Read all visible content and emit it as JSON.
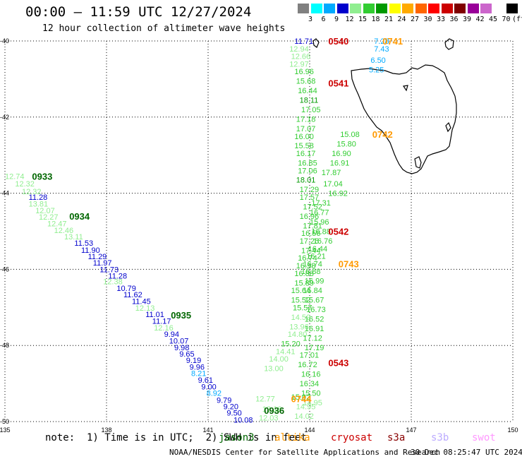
{
  "header": {
    "title": "00:00 – 11:59 UTC 12/27/2024",
    "subtitle": "12 hour collection of altimeter wave heights"
  },
  "colorbar": {
    "labels": [
      "3",
      "6",
      "9",
      "12",
      "15",
      "18",
      "21",
      "24",
      "27",
      "30",
      "33",
      "36",
      "39",
      "42",
      "45",
      "70",
      "(ft)"
    ],
    "colors": [
      "#808080",
      "#00ffff",
      "#00aaff",
      "#0000cc",
      "#90ee90",
      "#32cd32",
      "#009900",
      "#ffff00",
      "#ffaa00",
      "#ff6600",
      "#ff0000",
      "#cc0000",
      "#800000",
      "#990099",
      "#cc66cc",
      "#ffffff",
      "#000000"
    ]
  },
  "footer": {
    "note": "note:  1) Time is in UTC;  2) SWH is in feet",
    "satellites": [
      {
        "name": "jason3",
        "color": "#006600"
      },
      {
        "name": "altika",
        "color": "#ff9900"
      },
      {
        "name": "cryosat",
        "color": "#cc0000"
      },
      {
        "name": "s3a",
        "color": "#880000"
      },
      {
        "name": "s3b",
        "color": "#bbaaff"
      },
      {
        "name": "swot",
        "color": "#ff99ff"
      }
    ],
    "credit": "NOAA/NESDIS Center for Satellite Applications and Research",
    "timestamp": "30 Dec 08:25:47 UTC 2024"
  },
  "chart_data": {
    "type": "scatter",
    "title": "00:00 – 11:59 UTC 12/27/2024",
    "subtitle": "12 hour collection of altimeter wave heights",
    "xlim": [
      135,
      150
    ],
    "ylim": [
      -50,
      -40
    ],
    "x_ticks": [
      "135",
      "138",
      "141",
      "144",
      "147",
      "150"
    ],
    "y_ticks": [
      "-40",
      "-42",
      "-44",
      "-46",
      "-48",
      "-50"
    ],
    "grid": true,
    "time_labels": [
      {
        "text": "0933",
        "lon": 135.8,
        "lat": -43.55,
        "color": "#006600"
      },
      {
        "text": "0934",
        "lon": 136.9,
        "lat": -44.6,
        "color": "#006600"
      },
      {
        "text": "0935",
        "lon": 139.9,
        "lat": -47.2,
        "color": "#006600"
      },
      {
        "text": "0936",
        "lon": 142.65,
        "lat": -49.7,
        "color": "#006600"
      },
      {
        "text": "0540",
        "lon": 144.55,
        "lat": -40.0,
        "color": "#cc0000"
      },
      {
        "text": "0541",
        "lon": 144.55,
        "lat": -41.1,
        "color": "#cc0000"
      },
      {
        "text": "0542",
        "lon": 144.55,
        "lat": -45.0,
        "color": "#cc0000"
      },
      {
        "text": "0543",
        "lon": 144.55,
        "lat": -48.45,
        "color": "#cc0000"
      },
      {
        "text": "0741",
        "lon": 146.15,
        "lat": -40.0,
        "color": "#ff9900"
      },
      {
        "text": "0742",
        "lon": 145.85,
        "lat": -42.45,
        "color": "#ff9900"
      },
      {
        "text": "0743",
        "lon": 144.85,
        "lat": -45.85,
        "color": "#ff9900"
      },
      {
        "text": "0744",
        "lon": 143.45,
        "lat": -49.4,
        "color": "#ff9900"
      }
    ],
    "tracks": [
      {
        "satellite": "jason3",
        "points": [
          [
            "12.74",
            135.0,
            -43.55
          ],
          [
            "12.32",
            135.3,
            -43.75
          ],
          [
            "12.32",
            135.5,
            -43.95
          ],
          [
            "11.28",
            135.7,
            -44.1
          ],
          [
            "13.81",
            135.7,
            -44.28
          ],
          [
            "12.07",
            135.9,
            -44.45
          ],
          [
            "12.27",
            136.0,
            -44.62
          ],
          [
            "12.47",
            136.25,
            -44.8
          ],
          [
            "12.46",
            136.45,
            -44.97
          ],
          [
            "13.11",
            136.75,
            -45.14
          ],
          [
            "11.53",
            137.05,
            -45.31
          ],
          [
            "11.90",
            137.25,
            -45.49
          ],
          [
            "11.29",
            137.45,
            -45.66
          ],
          [
            "11.97",
            137.6,
            -45.83
          ],
          [
            "11.73",
            137.8,
            -46.0
          ],
          [
            "11.28",
            138.05,
            -46.17
          ],
          [
            "12.38",
            137.9,
            -46.32
          ],
          [
            "10.79",
            138.3,
            -46.49
          ],
          [
            "11.62",
            138.5,
            -46.66
          ],
          [
            "11.45",
            138.75,
            -46.84
          ],
          [
            "12.13",
            138.85,
            -47.01
          ],
          [
            "11.01",
            139.15,
            -47.18
          ],
          [
            "11.17",
            139.35,
            -47.36
          ],
          [
            "12.16",
            139.4,
            -47.53
          ],
          [
            "9.94",
            139.7,
            -47.7
          ],
          [
            "10.07",
            139.85,
            -47.88
          ],
          [
            "9.98",
            140.0,
            -48.05
          ],
          [
            "9.65",
            140.15,
            -48.22
          ],
          [
            "9.19",
            140.35,
            -48.39
          ],
          [
            "9.96",
            140.45,
            -48.56
          ],
          [
            "8.21",
            140.5,
            -48.73
          ],
          [
            "9.61",
            140.7,
            -48.91
          ],
          [
            "9.00",
            140.8,
            -49.08
          ],
          [
            "8.92",
            140.95,
            -49.25
          ],
          [
            "9.79",
            141.25,
            -49.43
          ],
          [
            "9.20",
            141.45,
            -49.6
          ],
          [
            "9.50",
            141.55,
            -49.77
          ],
          [
            "10.08",
            141.75,
            -49.95
          ],
          [
            "12.16",
            142.6,
            -49.67
          ],
          [
            "12.77",
            142.4,
            -49.4
          ],
          [
            "12.03",
            142.5,
            -49.9
          ]
        ]
      },
      {
        "satellite": "cryosat",
        "points": [
          [
            "11.71",
            143.55,
            -40.0
          ],
          [
            "12.94",
            143.4,
            -40.2
          ],
          [
            "12.66",
            143.45,
            -40.4
          ],
          [
            "12.97",
            143.4,
            -40.6
          ],
          [
            "16.96",
            143.55,
            -40.8
          ],
          [
            "15.68",
            143.6,
            -41.05
          ],
          [
            "16.44",
            143.65,
            -41.3
          ],
          [
            "18.11",
            143.7,
            -41.55
          ],
          [
            "17.05",
            143.75,
            -41.8
          ],
          [
            "17.18",
            143.6,
            -42.05
          ],
          [
            "17.07",
            143.6,
            -42.3
          ],
          [
            "16.00",
            143.55,
            -42.5
          ],
          [
            "15.58",
            143.55,
            -42.75
          ],
          [
            "16.17",
            143.6,
            -42.95
          ],
          [
            "16.85",
            143.65,
            -43.2
          ],
          [
            "17.06",
            143.65,
            -43.4
          ],
          [
            "18.01",
            143.6,
            -43.65
          ],
          [
            "17.29",
            143.7,
            -43.9
          ],
          [
            "17.57",
            143.7,
            -44.1
          ],
          [
            "17.52",
            143.8,
            -44.35
          ],
          [
            "16.96",
            143.7,
            -44.6
          ],
          [
            "17.81",
            143.8,
            -44.85
          ],
          [
            "16.56",
            143.75,
            -45.05
          ],
          [
            "17.26",
            143.7,
            -45.25
          ],
          [
            "17.44",
            143.75,
            -45.5
          ],
          [
            "16.74",
            143.65,
            -45.7
          ],
          [
            "16.58",
            143.6,
            -45.9
          ],
          [
            "16.88",
            143.55,
            -46.1
          ],
          [
            "15.89",
            143.55,
            -46.35
          ],
          [
            "15.64",
            143.45,
            -46.55
          ],
          [
            "15.52",
            143.45,
            -46.8
          ],
          [
            "15.57",
            143.5,
            -47.0
          ],
          [
            "14.52",
            143.45,
            -47.25
          ],
          [
            "13.96",
            143.4,
            -47.5
          ],
          [
            "14.80",
            143.35,
            -47.7
          ],
          [
            "15.20",
            143.15,
            -47.95
          ],
          [
            "14.41",
            143.0,
            -48.15
          ],
          [
            "14.00",
            142.8,
            -48.35
          ],
          [
            "13.00",
            142.65,
            -48.6
          ],
          [
            "14.02",
            143.55,
            -49.85
          ],
          [
            "14.95",
            143.6,
            -49.6
          ],
          [
            "15.02",
            143.45,
            -49.35
          ]
        ]
      },
      {
        "satellite": "altika",
        "points": [
          [
            "17.31",
            144.05,
            -44.25
          ],
          [
            "16.77",
            144.0,
            -44.5
          ],
          [
            "15.96",
            144.0,
            -44.75
          ],
          [
            "16.88",
            144.05,
            -45.0
          ],
          [
            "16.76",
            144.1,
            -45.25
          ],
          [
            "16.44",
            143.95,
            -45.45
          ],
          [
            "16.21",
            143.9,
            -45.65
          ],
          [
            "16.74",
            143.8,
            -45.85
          ],
          [
            "16.88",
            143.75,
            -46.05
          ],
          [
            "16.99",
            143.85,
            -46.3
          ],
          [
            "15.84",
            143.8,
            -46.55
          ],
          [
            "15.67",
            143.85,
            -46.8
          ],
          [
            "16.73",
            143.9,
            -47.05
          ],
          [
            "16.52",
            143.85,
            -47.3
          ],
          [
            "16.91",
            143.85,
            -47.55
          ],
          [
            "17.12",
            143.8,
            -47.8
          ],
          [
            "17.19",
            143.85,
            -48.05
          ],
          [
            "17.01",
            143.7,
            -48.25
          ],
          [
            "16.72",
            143.65,
            -48.5
          ],
          [
            "16.16",
            143.75,
            -48.75
          ],
          [
            "16.34",
            143.7,
            -49.0
          ],
          [
            "15.50",
            143.75,
            -49.25
          ],
          [
            "14.95",
            143.8,
            -49.5
          ],
          [
            "16.92",
            144.55,
            -44.0
          ],
          [
            "17.04",
            144.4,
            -43.75
          ],
          [
            "17.87",
            144.35,
            -43.45
          ],
          [
            "16.91",
            144.6,
            -43.2
          ],
          [
            "16.90",
            144.65,
            -42.95
          ],
          [
            "15.80",
            144.8,
            -42.7
          ],
          [
            "15.08",
            144.9,
            -42.45
          ]
        ]
      },
      {
        "satellite": "s3b",
        "points": [
          [
            "7.28",
            145.9,
            -40.0
          ],
          [
            "7.43",
            145.9,
            -40.2
          ],
          [
            "6.50",
            145.8,
            -40.5
          ],
          [
            "5.25",
            145.75,
            -40.75
          ]
        ]
      }
    ]
  }
}
